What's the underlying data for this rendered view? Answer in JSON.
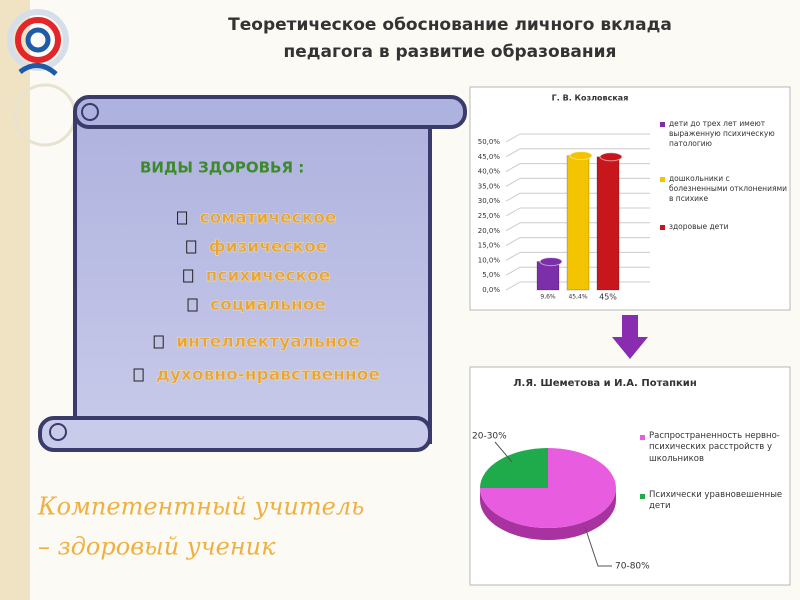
{
  "header": {
    "title_lines": [
      "Теоретическое обоснование личного вклада",
      "педагога в развитие образования"
    ]
  },
  "scroll": {
    "heading": "ВИДЫ ЗДОРОВЬЯ :",
    "items": [
      "соматическое",
      "физическое",
      "психическое",
      "социальное",
      "интеллектуальное",
      "духовно-нравственное"
    ]
  },
  "motto": [
    "Компетентный учитель",
    "– здоровый ученик"
  ],
  "chart_data": [
    {
      "type": "bar",
      "title": "Г. В. Козловская",
      "categories": [
        "дети до трех лет имеют выраженную психическую патологию",
        "дошкольники с болезненными отклонениями в психике",
        "здоровые дети"
      ],
      "values": [
        9.6,
        45.4,
        45
      ],
      "value_labels": [
        "9,6%",
        "45,4%",
        "45%"
      ],
      "colors": [
        "#7b2fa8",
        "#f5c400",
        "#c8161d"
      ],
      "ylim": [
        0,
        50
      ],
      "yticks": [
        {
          "value": 0,
          "label": "0,0%"
        },
        {
          "value": 5,
          "label": "5,0%"
        },
        {
          "value": 10,
          "label": "10,0%"
        },
        {
          "value": 15,
          "label": "15,0%"
        },
        {
          "value": 20,
          "label": "20,0%"
        },
        {
          "value": 25,
          "label": "25,0%"
        },
        {
          "value": 30,
          "label": "30,0%"
        },
        {
          "value": 35,
          "label": "35,0%"
        },
        {
          "value": 40,
          "label": "40,0%"
        },
        {
          "value": 45,
          "label": "45,0%"
        },
        {
          "value": 50,
          "label": "50,0%"
        }
      ],
      "grid": true
    },
    {
      "type": "pie",
      "title": "Л.Я. Шеметова и И.А. Потапкин",
      "categories": [
        "Распространенность нервно-психических расстройств у школьников",
        "Психически уравновешенные дети"
      ],
      "values": [
        75,
        25
      ],
      "value_labels": [
        "70-80%",
        "20-30%"
      ],
      "colors": [
        "#e85ce0",
        "#1faa4b"
      ]
    }
  ]
}
